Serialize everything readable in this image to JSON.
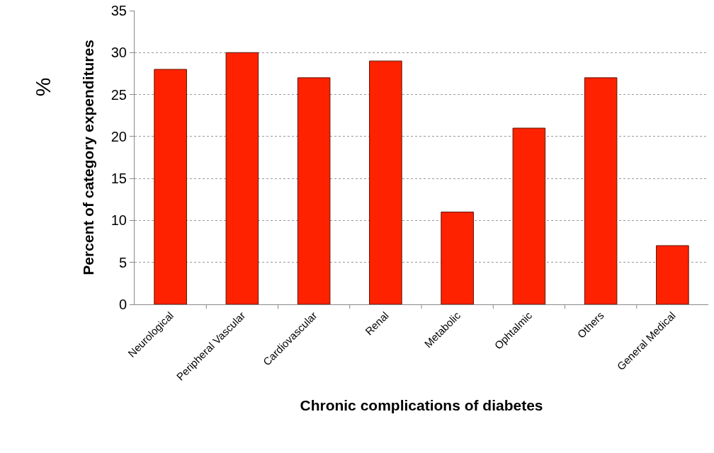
{
  "chart_data": {
    "type": "bar",
    "xlabel": "Chronic complications of diabetes",
    "ylabel": "Percent of category expenditures",
    "annotations": [
      "%"
    ],
    "categories": [
      "Neurological",
      "Peripheral Vascular",
      "Cardiovascular",
      "Renal",
      "Metabolic",
      "Ophtalmic",
      "Others",
      "General Medical"
    ],
    "values": [
      28,
      30,
      27,
      29,
      11,
      21,
      27,
      7
    ],
    "color": "#ff2200",
    "ylim": [
      0,
      35
    ],
    "yticks": [
      0,
      5,
      10,
      15,
      20,
      25,
      30,
      35
    ],
    "grid": "y"
  }
}
